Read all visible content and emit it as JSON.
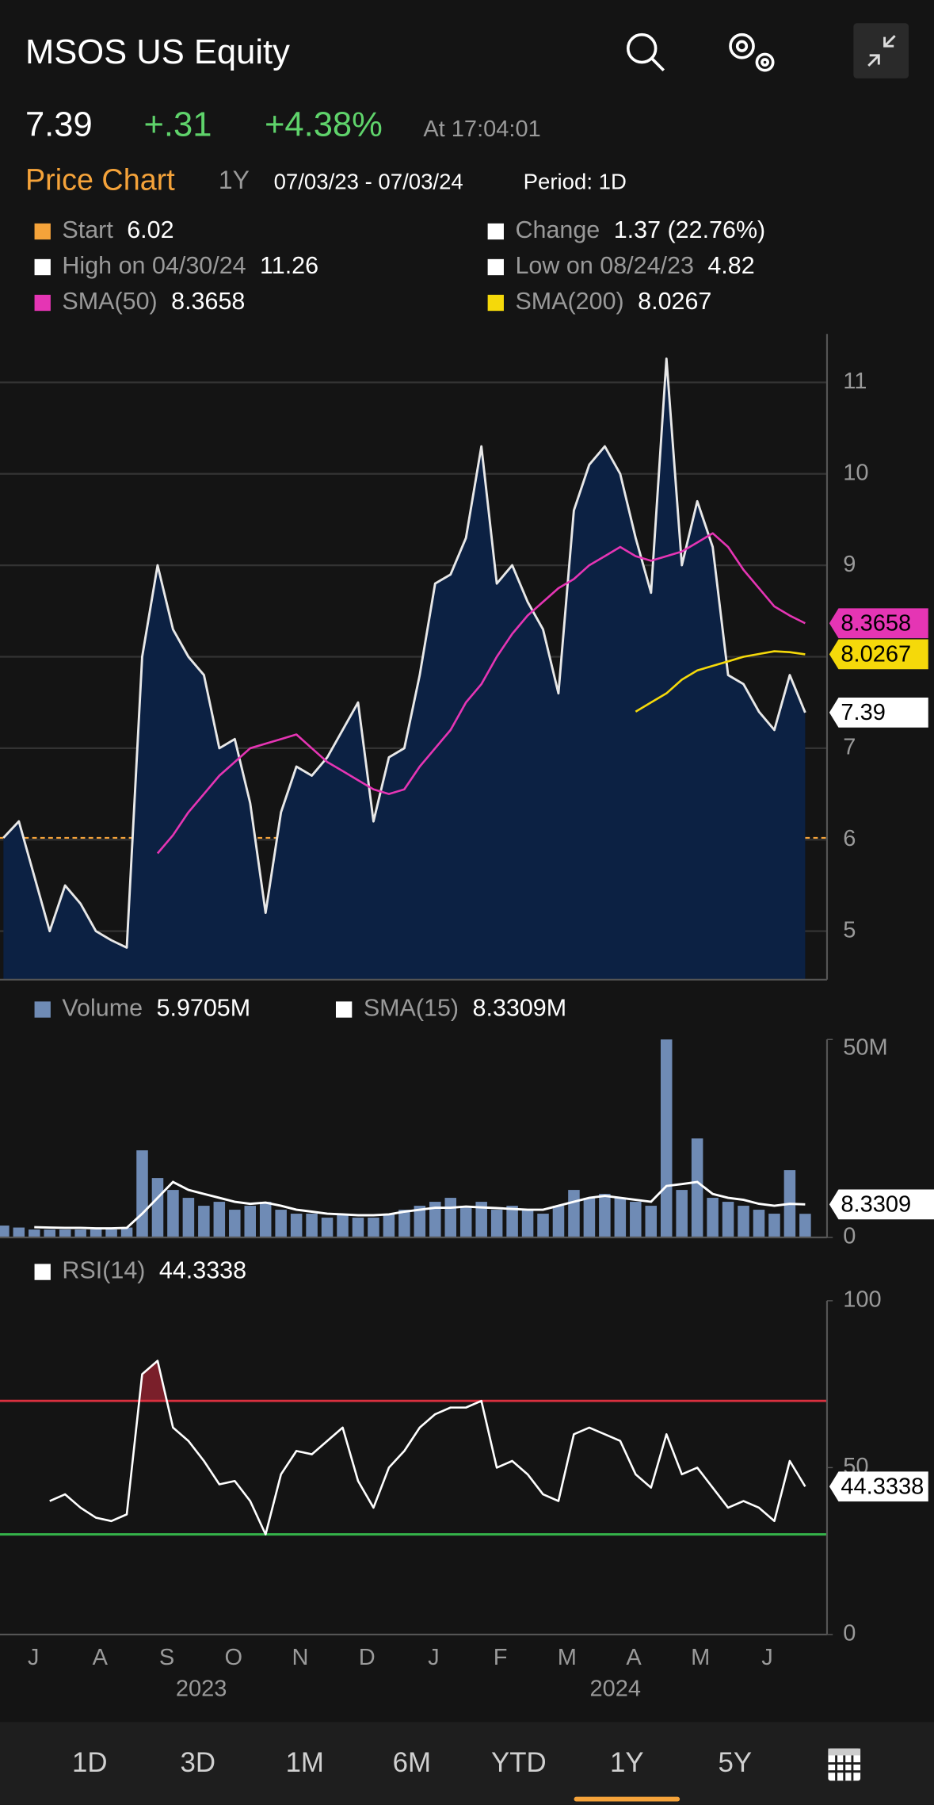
{
  "header": {
    "title": "MSOS US Equity",
    "change": "+.31",
    "change_pct": "+4.38%",
    "time": "At 17:04:01"
  },
  "subheader": {
    "label": "Price Chart",
    "range": "1Y",
    "dates": "07/03/23 - 07/03/24",
    "period": "Period: 1D"
  },
  "chart_data": [
    {
      "type": "line",
      "stats": [
        {
          "label": "Start",
          "value": 6.02,
          "color": "#f5a33a"
        },
        {
          "label": "Change",
          "value": "1.37 (22.76%)",
          "color": "#ffffff"
        },
        {
          "label": "High on 04/30/24",
          "value": 11.26,
          "color": "#ffffff"
        },
        {
          "label": "Low on 08/24/23",
          "value": 4.82,
          "color": "#ffffff"
        }
      ],
      "series": [
        {
          "color": "#e8e8e8",
          "fill": "#0c2143",
          "values": [
            6.02,
            6.2,
            5.6,
            5.0,
            5.5,
            5.3,
            5.0,
            4.9,
            4.82,
            8.0,
            9.0,
            8.3,
            8.0,
            7.8,
            7.0,
            7.1,
            6.4,
            5.2,
            6.3,
            6.8,
            6.7,
            6.9,
            7.2,
            7.5,
            6.2,
            6.9,
            7.0,
            7.8,
            8.8,
            8.9,
            9.3,
            10.3,
            8.8,
            9.0,
            8.6,
            8.3,
            7.6,
            9.6,
            10.1,
            10.3,
            10.0,
            9.3,
            8.7,
            11.26,
            9.0,
            9.7,
            9.2,
            7.8,
            7.7,
            7.4,
            7.2,
            7.8,
            7.39
          ]
        },
        {
          "name": "SMA(50)",
          "color": "#e535b4",
          "values": [
            null,
            null,
            null,
            null,
            null,
            null,
            null,
            null,
            null,
            null,
            5.85,
            6.05,
            6.3,
            6.5,
            6.7,
            6.85,
            7.0,
            7.05,
            7.1,
            7.15,
            7.0,
            6.85,
            6.75,
            6.65,
            6.55,
            6.5,
            6.55,
            6.8,
            7.0,
            7.2,
            7.5,
            7.7,
            8.0,
            8.25,
            8.45,
            8.6,
            8.75,
            8.85,
            9.0,
            9.1,
            9.2,
            9.1,
            9.05,
            9.1,
            9.15,
            9.25,
            9.35,
            9.2,
            8.95,
            8.75,
            8.55,
            8.45,
            8.3658
          ]
        },
        {
          "name": "SMA(200)",
          "color": "#f5d90a",
          "values": [
            null,
            null,
            null,
            null,
            null,
            null,
            null,
            null,
            null,
            null,
            null,
            null,
            null,
            null,
            null,
            null,
            null,
            null,
            null,
            null,
            null,
            null,
            null,
            null,
            null,
            null,
            null,
            null,
            null,
            null,
            null,
            null,
            null,
            null,
            null,
            null,
            null,
            null,
            null,
            null,
            null,
            7.4,
            7.5,
            7.6,
            7.75,
            7.85,
            7.9,
            7.95,
            8.0,
            8.03,
            8.06,
            8.05,
            8.0267
          ]
        }
      ],
      "ylim": [
        4.47,
        11.53
      ],
      "yticks": [
        5,
        6,
        7,
        8,
        9,
        10,
        11
      ],
      "grid": true
    },
    {
      "type": "bar",
      "series": [
        {
          "name": "Volume",
          "color": "#6f8bb5",
          "legend_value": "5.9705M",
          "values": [
            3,
            2.5,
            2,
            2,
            2,
            2,
            2,
            2,
            2.5,
            22,
            15,
            12,
            10,
            8,
            9,
            7,
            8,
            9,
            7,
            6,
            6,
            5,
            6,
            5,
            5,
            6,
            7,
            8,
            9,
            10,
            8,
            9,
            7,
            8,
            7,
            6,
            8,
            12,
            10,
            11,
            10,
            9,
            8,
            50,
            12,
            25,
            10,
            9,
            8,
            7,
            6,
            17,
            5.9705
          ]
        },
        {
          "name": "SMA(15)",
          "color": "#ffffff",
          "legend_value": "8.3309M",
          "values": [
            null,
            null,
            2.6,
            2.5,
            2.4,
            2.4,
            2.3,
            2.3,
            2.4,
            6,
            10,
            14,
            12,
            11,
            10,
            9,
            8.5,
            8.8,
            8,
            7,
            6.5,
            6,
            5.8,
            5.6,
            5.6,
            5.8,
            6.5,
            7,
            7.5,
            7.5,
            7.8,
            7.6,
            7.4,
            7.2,
            7,
            7,
            8,
            9,
            10,
            10.5,
            10,
            9.5,
            9,
            13,
            13.5,
            14,
            11,
            10,
            9.5,
            8.5,
            8,
            8.5,
            8.3309
          ]
        }
      ],
      "ylim": [
        0,
        50
      ],
      "yticks": [
        {
          "value": 0,
          "label": "0"
        },
        {
          "value": 50,
          "label": "50M"
        }
      ]
    },
    {
      "type": "line",
      "series": [
        {
          "name": "RSI(14)",
          "color": "#ffffff",
          "values": [
            null,
            null,
            null,
            40,
            42,
            38,
            35,
            34,
            36,
            78,
            82,
            62,
            58,
            52,
            45,
            46,
            40,
            30,
            48,
            55,
            54,
            58,
            62,
            46,
            38,
            50,
            55,
            62,
            66,
            68,
            68,
            70,
            50,
            52,
            48,
            42,
            40,
            60,
            62,
            60,
            58,
            48,
            44,
            60,
            48,
            50,
            44,
            38,
            40,
            38,
            34,
            52,
            44.3338
          ]
        }
      ],
      "bands": [
        {
          "value": 70,
          "color": "#d9303f",
          "fill": "#7a1f2a"
        },
        {
          "value": 30,
          "color": "#35b34a"
        }
      ],
      "ylim": [
        0,
        100
      ],
      "yticks": [
        0,
        50,
        100
      ]
    }
  ],
  "x_axis": {
    "months": [
      "J",
      "A",
      "S",
      "O",
      "N",
      "D",
      "J",
      "F",
      "M",
      "A",
      "M",
      "J"
    ],
    "years": [
      "2023",
      "2024"
    ]
  },
  "range_buttons": [
    "1D",
    "3D",
    "1M",
    "6M",
    "YTD",
    "1Y",
    "5Y"
  ],
  "selected_range": 5
}
